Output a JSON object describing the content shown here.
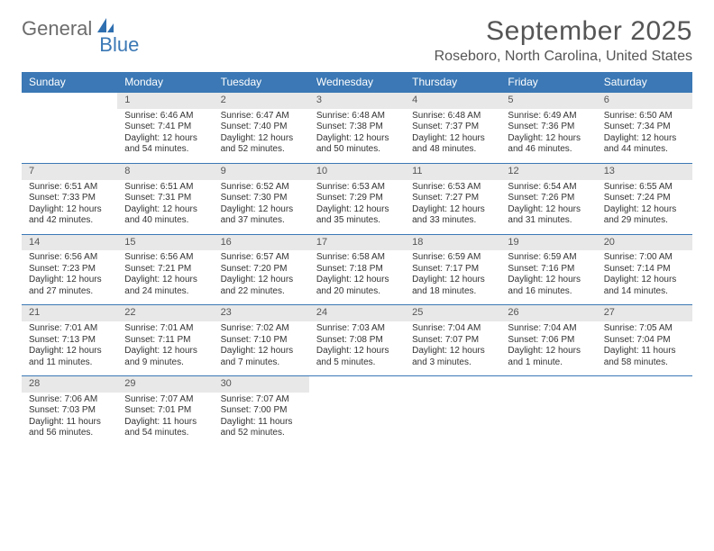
{
  "logo": {
    "word1": "General",
    "word2": "Blue",
    "icon_color": "#2f6fb0"
  },
  "title": "September 2025",
  "location": "Roseboro, North Carolina, United States",
  "colors": {
    "header_bg": "#3b78b5",
    "header_fg": "#ffffff",
    "daynum_bg": "#e8e8e8",
    "rule": "#3b78b5",
    "text": "#333333",
    "muted": "#555555"
  },
  "weekdays": [
    "Sunday",
    "Monday",
    "Tuesday",
    "Wednesday",
    "Thursday",
    "Friday",
    "Saturday"
  ],
  "weeks": [
    {
      "days": [
        null,
        {
          "n": "1",
          "sr": "Sunrise: 6:46 AM",
          "ss": "Sunset: 7:41 PM",
          "d1": "Daylight: 12 hours",
          "d2": "and 54 minutes."
        },
        {
          "n": "2",
          "sr": "Sunrise: 6:47 AM",
          "ss": "Sunset: 7:40 PM",
          "d1": "Daylight: 12 hours",
          "d2": "and 52 minutes."
        },
        {
          "n": "3",
          "sr": "Sunrise: 6:48 AM",
          "ss": "Sunset: 7:38 PM",
          "d1": "Daylight: 12 hours",
          "d2": "and 50 minutes."
        },
        {
          "n": "4",
          "sr": "Sunrise: 6:48 AM",
          "ss": "Sunset: 7:37 PM",
          "d1": "Daylight: 12 hours",
          "d2": "and 48 minutes."
        },
        {
          "n": "5",
          "sr": "Sunrise: 6:49 AM",
          "ss": "Sunset: 7:36 PM",
          "d1": "Daylight: 12 hours",
          "d2": "and 46 minutes."
        },
        {
          "n": "6",
          "sr": "Sunrise: 6:50 AM",
          "ss": "Sunset: 7:34 PM",
          "d1": "Daylight: 12 hours",
          "d2": "and 44 minutes."
        }
      ]
    },
    {
      "days": [
        {
          "n": "7",
          "sr": "Sunrise: 6:51 AM",
          "ss": "Sunset: 7:33 PM",
          "d1": "Daylight: 12 hours",
          "d2": "and 42 minutes."
        },
        {
          "n": "8",
          "sr": "Sunrise: 6:51 AM",
          "ss": "Sunset: 7:31 PM",
          "d1": "Daylight: 12 hours",
          "d2": "and 40 minutes."
        },
        {
          "n": "9",
          "sr": "Sunrise: 6:52 AM",
          "ss": "Sunset: 7:30 PM",
          "d1": "Daylight: 12 hours",
          "d2": "and 37 minutes."
        },
        {
          "n": "10",
          "sr": "Sunrise: 6:53 AM",
          "ss": "Sunset: 7:29 PM",
          "d1": "Daylight: 12 hours",
          "d2": "and 35 minutes."
        },
        {
          "n": "11",
          "sr": "Sunrise: 6:53 AM",
          "ss": "Sunset: 7:27 PM",
          "d1": "Daylight: 12 hours",
          "d2": "and 33 minutes."
        },
        {
          "n": "12",
          "sr": "Sunrise: 6:54 AM",
          "ss": "Sunset: 7:26 PM",
          "d1": "Daylight: 12 hours",
          "d2": "and 31 minutes."
        },
        {
          "n": "13",
          "sr": "Sunrise: 6:55 AM",
          "ss": "Sunset: 7:24 PM",
          "d1": "Daylight: 12 hours",
          "d2": "and 29 minutes."
        }
      ]
    },
    {
      "days": [
        {
          "n": "14",
          "sr": "Sunrise: 6:56 AM",
          "ss": "Sunset: 7:23 PM",
          "d1": "Daylight: 12 hours",
          "d2": "and 27 minutes."
        },
        {
          "n": "15",
          "sr": "Sunrise: 6:56 AM",
          "ss": "Sunset: 7:21 PM",
          "d1": "Daylight: 12 hours",
          "d2": "and 24 minutes."
        },
        {
          "n": "16",
          "sr": "Sunrise: 6:57 AM",
          "ss": "Sunset: 7:20 PM",
          "d1": "Daylight: 12 hours",
          "d2": "and 22 minutes."
        },
        {
          "n": "17",
          "sr": "Sunrise: 6:58 AM",
          "ss": "Sunset: 7:18 PM",
          "d1": "Daylight: 12 hours",
          "d2": "and 20 minutes."
        },
        {
          "n": "18",
          "sr": "Sunrise: 6:59 AM",
          "ss": "Sunset: 7:17 PM",
          "d1": "Daylight: 12 hours",
          "d2": "and 18 minutes."
        },
        {
          "n": "19",
          "sr": "Sunrise: 6:59 AM",
          "ss": "Sunset: 7:16 PM",
          "d1": "Daylight: 12 hours",
          "d2": "and 16 minutes."
        },
        {
          "n": "20",
          "sr": "Sunrise: 7:00 AM",
          "ss": "Sunset: 7:14 PM",
          "d1": "Daylight: 12 hours",
          "d2": "and 14 minutes."
        }
      ]
    },
    {
      "days": [
        {
          "n": "21",
          "sr": "Sunrise: 7:01 AM",
          "ss": "Sunset: 7:13 PM",
          "d1": "Daylight: 12 hours",
          "d2": "and 11 minutes."
        },
        {
          "n": "22",
          "sr": "Sunrise: 7:01 AM",
          "ss": "Sunset: 7:11 PM",
          "d1": "Daylight: 12 hours",
          "d2": "and 9 minutes."
        },
        {
          "n": "23",
          "sr": "Sunrise: 7:02 AM",
          "ss": "Sunset: 7:10 PM",
          "d1": "Daylight: 12 hours",
          "d2": "and 7 minutes."
        },
        {
          "n": "24",
          "sr": "Sunrise: 7:03 AM",
          "ss": "Sunset: 7:08 PM",
          "d1": "Daylight: 12 hours",
          "d2": "and 5 minutes."
        },
        {
          "n": "25",
          "sr": "Sunrise: 7:04 AM",
          "ss": "Sunset: 7:07 PM",
          "d1": "Daylight: 12 hours",
          "d2": "and 3 minutes."
        },
        {
          "n": "26",
          "sr": "Sunrise: 7:04 AM",
          "ss": "Sunset: 7:06 PM",
          "d1": "Daylight: 12 hours",
          "d2": "and 1 minute."
        },
        {
          "n": "27",
          "sr": "Sunrise: 7:05 AM",
          "ss": "Sunset: 7:04 PM",
          "d1": "Daylight: 11 hours",
          "d2": "and 58 minutes."
        }
      ]
    },
    {
      "days": [
        {
          "n": "28",
          "sr": "Sunrise: 7:06 AM",
          "ss": "Sunset: 7:03 PM",
          "d1": "Daylight: 11 hours",
          "d2": "and 56 minutes."
        },
        {
          "n": "29",
          "sr": "Sunrise: 7:07 AM",
          "ss": "Sunset: 7:01 PM",
          "d1": "Daylight: 11 hours",
          "d2": "and 54 minutes."
        },
        {
          "n": "30",
          "sr": "Sunrise: 7:07 AM",
          "ss": "Sunset: 7:00 PM",
          "d1": "Daylight: 11 hours",
          "d2": "and 52 minutes."
        },
        null,
        null,
        null,
        null
      ]
    }
  ]
}
